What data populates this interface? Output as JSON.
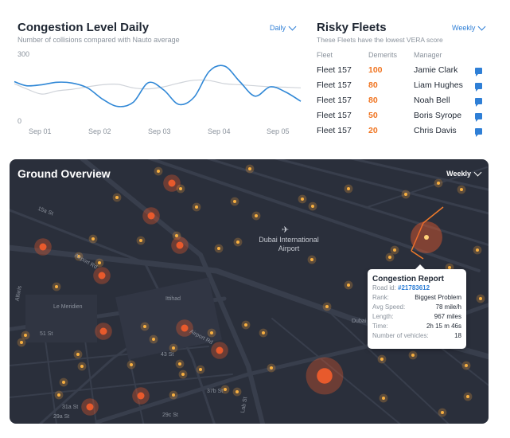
{
  "congestion": {
    "title": "Congestion Level Daily",
    "subtitle": "Number of collisions compared with Nauto average",
    "period": "Daily",
    "y_ticks": [
      "300",
      "0"
    ],
    "x_ticks": [
      "Sep 01",
      "Sep 02",
      "Sep 03",
      "Sep 04",
      "Sep 05"
    ],
    "chart_data": {
      "type": "line",
      "ylim": [
        0,
        300
      ],
      "x": [
        0,
        0.2,
        0.45,
        0.7,
        0.95,
        1.2,
        1.45,
        1.7,
        1.95,
        2.2,
        2.45,
        2.7,
        2.95,
        3.2,
        3.45,
        3.7,
        3.95,
        4.2,
        4.45,
        4.7
      ],
      "series": [
        {
          "color": "#2f87d6",
          "values": [
            175,
            155,
            160,
            172,
            168,
            145,
            90,
            55,
            75,
            170,
            135,
            65,
            100,
            225,
            250,
            175,
            105,
            150,
            125,
            80
          ]
        },
        {
          "color": "#cfd3d9",
          "values": [
            165,
            140,
            115,
            130,
            138,
            150,
            160,
            162,
            145,
            140,
            150,
            168,
            182,
            180,
            165,
            160,
            155,
            150,
            148,
            145
          ]
        }
      ]
    }
  },
  "risky": {
    "title": "Risky Fleets",
    "subtitle": "These Fleets have the lowest VERA score",
    "period": "Weekly",
    "headers": {
      "fleet": "Fleet",
      "demerits": "Demerits",
      "manager": "Manager"
    },
    "rows": [
      {
        "fleet": "Fleet 157",
        "demerits": "100",
        "manager": "Jamie Clark"
      },
      {
        "fleet": "Fleet 157",
        "demerits": "80",
        "manager": "Liam Hughes"
      },
      {
        "fleet": "Fleet 157",
        "demerits": "80",
        "manager": "Noah Bell"
      },
      {
        "fleet": "Fleet 157",
        "demerits": "50",
        "manager": "Boris Syrope"
      },
      {
        "fleet": "Fleet 157",
        "demerits": "20",
        "manager": "Chris Davis"
      }
    ],
    "message_icon": "message-icon"
  },
  "map": {
    "title": "Ground Overview",
    "period": "Weekly",
    "airport": "Dubai International Airport",
    "labels": {
      "l1": "Airport Rd",
      "l2": "Airport Rd",
      "l3": "Le Meridien",
      "l4": "Dubai",
      "l5": "51 St",
      "l6": "43 St",
      "l7": "37b St",
      "l8": "29c St",
      "l9": "31a St",
      "l10": "29a St",
      "l11": "15a St",
      "l12": "Lab St",
      "l13": "Alfaris",
      "l14": "Ittihad"
    },
    "report": {
      "title": "Congestion Report",
      "road_label": "Road id:",
      "road_id": "#21783612",
      "rank_label": "Rank:",
      "rank": "Biggest Problem",
      "speed_label": "Avg Speed:",
      "speed": "78 mile/h",
      "length_label": "Length:",
      "length": "967 miles",
      "time_label": "Time:",
      "time": "2h 15 m 46s",
      "vehicles_label": "Number of vehicles:",
      "vehicles": "18"
    },
    "colors": {
      "background": "#2a2f3b",
      "road": "#3b4150",
      "hotspot": "#f6a33a",
      "hotspot_big": "#e85a2c"
    }
  }
}
